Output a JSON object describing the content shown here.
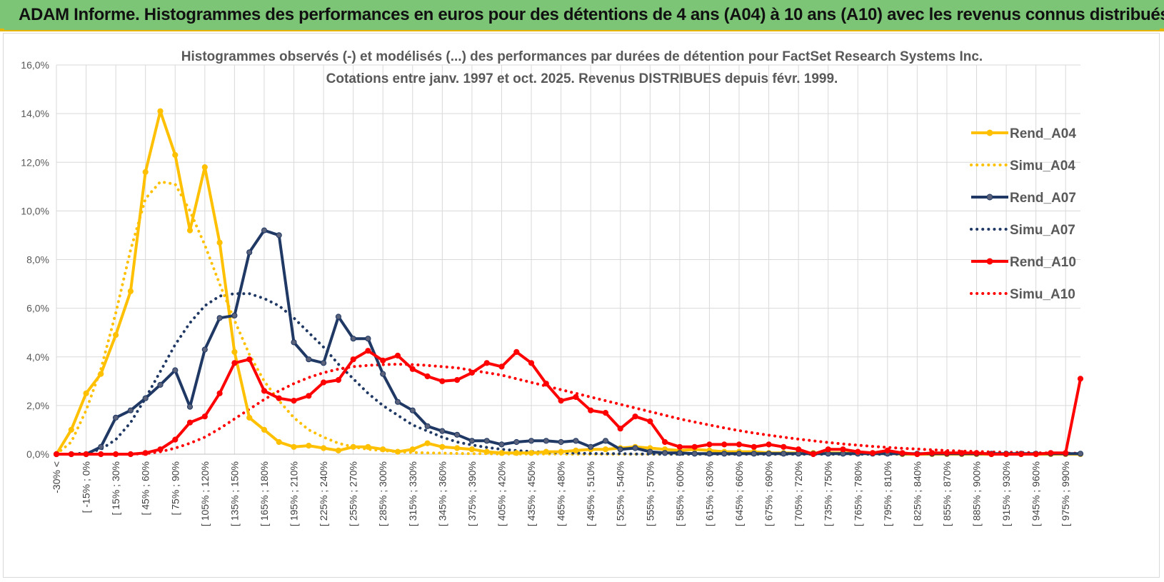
{
  "banner": {
    "title": "ADAM Informe. Histogrammes des performances en euros pour des détentions de 4 ans (A04) à 10 ans (A10) avec les revenus connus distribués"
  },
  "colors": {
    "A04": "#ffc000",
    "A07": "#1f3864",
    "A10": "#ff0000",
    "banner": "#7cc576"
  },
  "chart_data": {
    "type": "line",
    "title": "Histogrammes observés (-) et modélisés (...) des performances par durées de détention pour FactSet Research Systems Inc.",
    "subtitle": "Cotations entre janv. 1997 et oct. 2025. Revenus DISTRIBUES depuis févr. 1999.",
    "xlabel": "",
    "ylabel": "",
    "ylim": [
      0,
      16
    ],
    "y_ticks": [
      "0,0%",
      "2,0%",
      "4,0%",
      "6,0%",
      "8,0%",
      "10,0%",
      "12,0%",
      "14,0%",
      "16,0%"
    ],
    "grid": true,
    "legend_position": "right",
    "x_labels": [
      "-30% <",
      "[ -15% ; 0%",
      "[ 15% ; 30%",
      "[ 45% ; 60%",
      "[ 75% ; 90%",
      "[ 105% ; 120%",
      "[ 135% ; 150%",
      "[ 165% ; 180%",
      "[ 195% ; 210%",
      "[ 225% ; 240%",
      "[ 255% ; 270%",
      "[ 285% ; 300%",
      "[ 315% ; 330%",
      "[ 345% ; 360%",
      "[ 375% ; 390%",
      "[ 405% ; 420%",
      "[ 435% ; 450%",
      "[ 465% ; 480%",
      "[ 495% ; 510%",
      "[ 525% ; 540%",
      "[ 555% ; 570%",
      "[ 585% ; 600%",
      "[ 615% ; 630%",
      "[ 645% ; 660%",
      "[ 675% ; 690%",
      "[ 705% ; 720%",
      "[ 735% ; 750%",
      "[ 765% ; 780%",
      "[ 795% ; 810%",
      "[ 825% ; 840%",
      "[ 855% ; 870%",
      "[ 885% ; 900%",
      "[ 915% ; 930%",
      "[ 945% ; 960%",
      "[ 975% ; 990%"
    ],
    "categories_count": 70,
    "series": [
      {
        "name": "Rend_A04",
        "style": "solid",
        "marker": true,
        "color": "#ffc000",
        "values": [
          0.0,
          1.0,
          2.5,
          3.3,
          4.9,
          6.7,
          11.6,
          14.1,
          12.3,
          9.2,
          11.8,
          8.7,
          4.2,
          1.5,
          1.0,
          0.5,
          0.3,
          0.35,
          0.25,
          0.15,
          0.3,
          0.3,
          0.2,
          0.1,
          0.2,
          0.45,
          0.3,
          0.25,
          0.2,
          0.1,
          0.05,
          0.05,
          0.05,
          0.1,
          0.1,
          0.15,
          0.2,
          0.2,
          0.25,
          0.3,
          0.25,
          0.2,
          0.15,
          0.2,
          0.15,
          0.1,
          0.1,
          0.1,
          0.05,
          0.05,
          0.05,
          0.05,
          0.05,
          0.05,
          0.05,
          0.05,
          0.05,
          0.0,
          0.0,
          0.0,
          0.0,
          0.0,
          0.0,
          0.0,
          0.0,
          0.0,
          0.0,
          0.0,
          0.0,
          0.0
        ]
      },
      {
        "name": "Simu_A04",
        "style": "dotted",
        "marker": false,
        "color": "#ffc000",
        "values": [
          0.0,
          0.5,
          1.8,
          3.5,
          5.8,
          8.4,
          10.5,
          11.2,
          11.1,
          10.0,
          8.6,
          7.0,
          5.5,
          4.1,
          3.0,
          2.2,
          1.5,
          1.0,
          0.7,
          0.45,
          0.3,
          0.2,
          0.15,
          0.1,
          0.07,
          0.05,
          0.04,
          0.03,
          0.02,
          0.02,
          0.01,
          0.01,
          0.01,
          0.01,
          0.01,
          0.0,
          0.0,
          0.0,
          0.0,
          0.0,
          0.0,
          0.0,
          0.0,
          0.0,
          0.0,
          0.0,
          0.0,
          0.0,
          0.0,
          0.0,
          0.0,
          0.0,
          0.0,
          0.0,
          0.0,
          0.0,
          0.0,
          0.0,
          0.0,
          0.0,
          0.0,
          0.0,
          0.0,
          0.0,
          0.0,
          0.0,
          0.0,
          0.0,
          0.0,
          0.0
        ]
      },
      {
        "name": "Rend_A07",
        "style": "solid",
        "marker": true,
        "color": "#1f3864",
        "values": [
          0.0,
          0.0,
          0.0,
          0.3,
          1.5,
          1.8,
          2.3,
          2.85,
          3.45,
          1.95,
          4.3,
          5.6,
          5.7,
          8.3,
          9.2,
          9.0,
          4.6,
          3.9,
          3.75,
          5.65,
          4.75,
          4.75,
          3.3,
          2.15,
          1.8,
          1.15,
          0.95,
          0.8,
          0.55,
          0.55,
          0.4,
          0.5,
          0.55,
          0.55,
          0.5,
          0.55,
          0.3,
          0.55,
          0.2,
          0.25,
          0.1,
          0.05,
          0.05,
          0.02,
          0.02,
          0.02,
          0.02,
          0.02,
          0.02,
          0.02,
          0.02,
          0.02,
          0.02,
          0.02,
          0.02,
          0.02,
          0.02,
          0.02,
          0.02,
          0.02,
          0.02,
          0.02,
          0.02,
          0.02,
          0.02,
          0.02,
          0.02,
          0.02,
          0.02,
          0.02
        ]
      },
      {
        "name": "Simu_A07",
        "style": "dotted",
        "marker": false,
        "color": "#1f3864",
        "values": [
          0.0,
          0.0,
          0.05,
          0.2,
          0.6,
          1.3,
          2.3,
          3.4,
          4.5,
          5.4,
          6.1,
          6.5,
          6.6,
          6.6,
          6.4,
          6.1,
          5.6,
          5.0,
          4.4,
          3.7,
          3.1,
          2.5,
          2.0,
          1.6,
          1.2,
          0.95,
          0.7,
          0.5,
          0.38,
          0.28,
          0.2,
          0.15,
          0.11,
          0.08,
          0.06,
          0.04,
          0.03,
          0.02,
          0.02,
          0.01,
          0.01,
          0.0,
          0.0,
          0.0,
          0.0,
          0.0,
          0.0,
          0.0,
          0.0,
          0.0,
          0.0,
          0.0,
          0.0,
          0.0,
          0.0,
          0.0,
          0.0,
          0.0,
          0.0,
          0.0,
          0.0,
          0.0,
          0.0,
          0.0,
          0.0,
          0.0,
          0.0,
          0.0,
          0.0,
          0.0
        ]
      },
      {
        "name": "Rend_A10",
        "style": "solid",
        "marker": true,
        "color": "#ff0000",
        "values": [
          0.0,
          0.0,
          0.0,
          0.0,
          0.0,
          0.0,
          0.05,
          0.2,
          0.6,
          1.3,
          1.55,
          2.5,
          3.75,
          3.9,
          2.6,
          2.3,
          2.2,
          2.4,
          2.95,
          3.05,
          3.9,
          4.25,
          3.85,
          4.05,
          3.5,
          3.2,
          3.0,
          3.05,
          3.35,
          3.75,
          3.6,
          4.2,
          3.75,
          2.9,
          2.2,
          2.35,
          1.8,
          1.7,
          1.05,
          1.55,
          1.35,
          0.5,
          0.3,
          0.3,
          0.4,
          0.4,
          0.4,
          0.3,
          0.4,
          0.3,
          0.2,
          0.0,
          0.2,
          0.2,
          0.1,
          0.05,
          0.15,
          0.05,
          0.0,
          0.05,
          0.05,
          0.05,
          0.05,
          0.0,
          0.0,
          0.0,
          0.0,
          0.05,
          0.05,
          3.1
        ]
      },
      {
        "name": "Simu_A10",
        "style": "dotted",
        "marker": false,
        "color": "#ff0000",
        "values": [
          0.0,
          0.0,
          0.0,
          0.0,
          0.0,
          0.0,
          0.02,
          0.1,
          0.25,
          0.45,
          0.7,
          1.05,
          1.45,
          1.85,
          2.25,
          2.6,
          2.9,
          3.15,
          3.35,
          3.5,
          3.6,
          3.65,
          3.68,
          3.7,
          3.68,
          3.65,
          3.6,
          3.55,
          3.45,
          3.35,
          3.25,
          3.1,
          2.95,
          2.8,
          2.65,
          2.5,
          2.35,
          2.2,
          2.05,
          1.9,
          1.75,
          1.6,
          1.45,
          1.32,
          1.2,
          1.08,
          0.97,
          0.87,
          0.78,
          0.7,
          0.62,
          0.55,
          0.48,
          0.42,
          0.37,
          0.32,
          0.28,
          0.24,
          0.21,
          0.18,
          0.15,
          0.13,
          0.11,
          0.09,
          0.08,
          0.07,
          0.06,
          0.05,
          0.04,
          0.04
        ]
      }
    ]
  }
}
